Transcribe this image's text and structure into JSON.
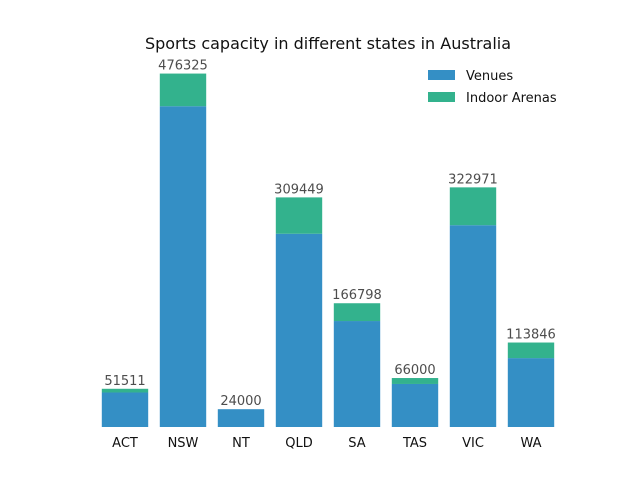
{
  "chart_data": {
    "type": "bar",
    "stacked": true,
    "title": "Sports capacity in different states in Australia",
    "xlabel": "",
    "ylabel": "",
    "categories": [
      "ACT",
      "NSW",
      "NT",
      "QLD",
      "SA",
      "TAS",
      "VIC",
      "WA"
    ],
    "series": [
      {
        "name": "Venues",
        "color": "#348fc5",
        "values": [
          46511,
          432325,
          24000,
          260449,
          142798,
          58000,
          271971,
          92846
        ]
      },
      {
        "name": "Indoor Arenas",
        "color": "#33b28d",
        "values": [
          5000,
          44000,
          0,
          49000,
          24000,
          8000,
          51000,
          21000
        ]
      }
    ],
    "totals": [
      "51511",
      "476325",
      "24000",
      "309449",
      "166798",
      "66000",
      "322971",
      "113846"
    ],
    "ylim": [
      0,
      500000
    ],
    "grid": false,
    "y_axis_visible": false,
    "legend_position": "top-right"
  }
}
